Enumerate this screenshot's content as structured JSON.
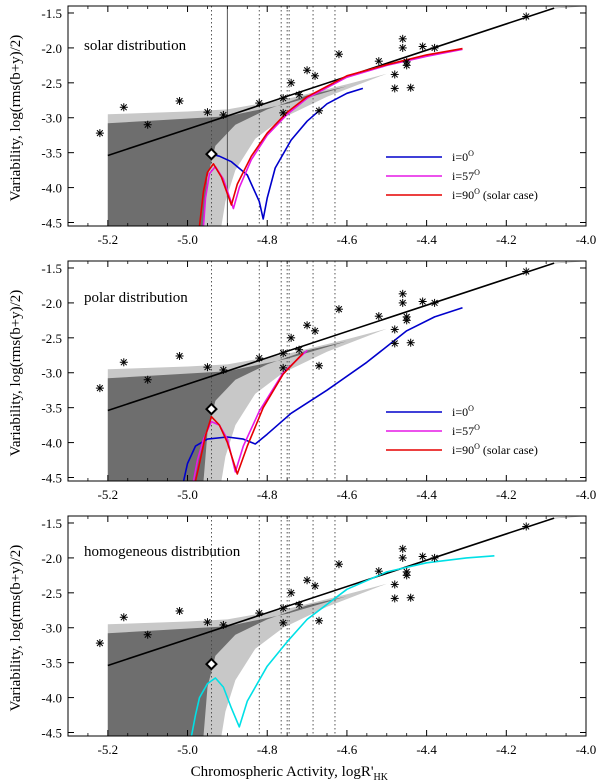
{
  "chart_data": {
    "type": "line",
    "xlabel": "Chromospheric Activity,  logR'",
    "xlabel_sub": "HK",
    "ylabel": "Variability, log(rms(b+y)/2)",
    "xlim": [
      -5.3,
      -4.0
    ],
    "ylim": [
      -4.55,
      -1.4
    ],
    "xticks": [
      -5.2,
      -5.0,
      -4.8,
      -4.6,
      -4.4,
      -4.2,
      -4.0
    ],
    "xtick_labels": [
      "-5.2",
      "-5.0",
      "-4.8",
      "-4.6",
      "-4.4",
      "-4.2",
      "-4.0"
    ],
    "yticks": [
      -1.5,
      -2.0,
      -2.5,
      -3.0,
      -3.5,
      -4.0,
      -4.5
    ],
    "ytick_labels": [
      "-1.5",
      "-2.0",
      "-2.5",
      "-3.0",
      "-3.5",
      "-4.0",
      "-4.5"
    ],
    "colors": {
      "dark_band": "#6e6e6e",
      "light_band": "#c8c8c8",
      "fit_line": "#000000",
      "guide_line": "#bbbbbb",
      "i0": "#0000cc",
      "i57": "#e619e6",
      "i90": "#e60000",
      "homogeneous": "#00e0e6"
    },
    "stars": [
      {
        "x": -5.22,
        "y": -3.22
      },
      {
        "x": -5.16,
        "y": -2.85
      },
      {
        "x": -5.1,
        "y": -3.1
      },
      {
        "x": -5.02,
        "y": -2.76
      },
      {
        "x": -4.95,
        "y": -2.92
      },
      {
        "x": -4.91,
        "y": -2.96
      },
      {
        "x": -4.82,
        "y": -2.79
      },
      {
        "x": -4.76,
        "y": -2.72
      },
      {
        "x": -4.76,
        "y": -2.93
      },
      {
        "x": -4.74,
        "y": -2.5
      },
      {
        "x": -4.72,
        "y": -2.67
      },
      {
        "x": -4.7,
        "y": -2.32
      },
      {
        "x": -4.68,
        "y": -2.4
      },
      {
        "x": -4.67,
        "y": -2.9
      },
      {
        "x": -4.62,
        "y": -2.09
      },
      {
        "x": -4.52,
        "y": -2.19
      },
      {
        "x": -4.48,
        "y": -2.38
      },
      {
        "x": -4.48,
        "y": -2.58
      },
      {
        "x": -4.46,
        "y": -2.0
      },
      {
        "x": -4.46,
        "y": -1.87
      },
      {
        "x": -4.45,
        "y": -2.25
      },
      {
        "x": -4.45,
        "y": -2.2
      },
      {
        "x": -4.44,
        "y": -2.57
      },
      {
        "x": -4.41,
        "y": -1.98
      },
      {
        "x": -4.38,
        "y": -2.0
      },
      {
        "x": -4.15,
        "y": -1.55
      }
    ],
    "sun": {
      "x": -4.94,
      "y": -3.52
    },
    "fit_line": [
      {
        "x": -5.2,
        "y": -3.54
      },
      {
        "x": -4.08,
        "y": -1.43
      }
    ],
    "vertical_lines": [
      -4.94,
      -4.82,
      -4.765,
      -4.75,
      -4.745,
      -4.685,
      -4.63
    ],
    "bands": {
      "x_start": -5.2,
      "dark": {
        "upper": [
          [
            -5.2,
            -3.08
          ],
          [
            -4.9,
            -2.98
          ],
          [
            -4.75,
            -2.8
          ],
          [
            -4.6,
            -2.55
          ],
          [
            -4.5,
            -2.37
          ]
        ],
        "edge": [
          [
            -4.96,
            -4.55
          ],
          [
            -4.95,
            -3.85
          ],
          [
            -4.93,
            -3.4
          ],
          [
            -4.88,
            -3.1
          ],
          [
            -4.8,
            -2.88
          ],
          [
            -4.7,
            -2.68
          ],
          [
            -4.6,
            -2.55
          ],
          [
            -4.5,
            -2.37
          ]
        ]
      },
      "light": {
        "upper": [
          [
            -5.2,
            -2.95
          ],
          [
            -5.0,
            -2.91
          ],
          [
            -4.9,
            -2.88
          ],
          [
            -4.75,
            -2.73
          ],
          [
            -4.6,
            -2.52
          ],
          [
            -4.5,
            -2.37
          ]
        ],
        "edge": [
          [
            -4.915,
            -4.55
          ],
          [
            -4.905,
            -4.2
          ],
          [
            -4.88,
            -3.75
          ],
          [
            -4.83,
            -3.3
          ],
          [
            -4.76,
            -3.0
          ],
          [
            -4.65,
            -2.7
          ],
          [
            -4.5,
            -2.37
          ]
        ]
      }
    },
    "panels": [
      {
        "title": "solar distribution",
        "solid_vertical_line": -4.9,
        "legend": [
          "i=0",
          "i=57",
          "i=90"
        ],
        "legend_suffix": [
          "",
          "",
          " (solar case)"
        ],
        "legend_sup": "O",
        "series": [
          {
            "name": "i=0",
            "color_key": "i0",
            "points": [
              [
                -4.94,
                -3.52
              ],
              [
                -4.92,
                -3.55
              ],
              [
                -4.89,
                -3.63
              ],
              [
                -4.85,
                -3.82
              ],
              [
                -4.82,
                -4.2
              ],
              [
                -4.81,
                -4.45
              ],
              [
                -4.8,
                -4.15
              ],
              [
                -4.78,
                -3.72
              ],
              [
                -4.74,
                -3.32
              ],
              [
                -4.7,
                -3.05
              ],
              [
                -4.65,
                -2.8
              ],
              [
                -4.6,
                -2.65
              ],
              [
                -4.56,
                -2.58
              ]
            ]
          },
          {
            "name": "i=57",
            "color_key": "i57",
            "points": [
              [
                -4.96,
                -4.55
              ],
              [
                -4.955,
                -4.15
              ],
              [
                -4.945,
                -3.8
              ],
              [
                -4.93,
                -3.7
              ],
              [
                -4.91,
                -3.88
              ],
              [
                -4.885,
                -4.3
              ],
              [
                -4.87,
                -4.0
              ],
              [
                -4.84,
                -3.6
              ],
              [
                -4.8,
                -3.25
              ],
              [
                -4.75,
                -2.95
              ],
              [
                -4.7,
                -2.72
              ],
              [
                -4.6,
                -2.42
              ],
              [
                -4.5,
                -2.25
              ],
              [
                -4.4,
                -2.12
              ],
              [
                -4.31,
                -2.02
              ]
            ]
          },
          {
            "name": "i=90",
            "color_key": "i90",
            "points": [
              [
                -4.97,
                -4.55
              ],
              [
                -4.96,
                -4.05
              ],
              [
                -4.95,
                -3.78
              ],
              [
                -4.935,
                -3.66
              ],
              [
                -4.915,
                -3.85
              ],
              [
                -4.89,
                -4.25
              ],
              [
                -4.875,
                -3.95
              ],
              [
                -4.84,
                -3.55
              ],
              [
                -4.8,
                -3.22
              ],
              [
                -4.75,
                -2.92
              ],
              [
                -4.7,
                -2.7
              ],
              [
                -4.6,
                -2.4
              ],
              [
                -4.5,
                -2.24
              ],
              [
                -4.4,
                -2.1
              ],
              [
                -4.31,
                -2.01
              ]
            ]
          }
        ]
      },
      {
        "title": "polar distribution",
        "solid_vertical_line": null,
        "legend": [
          "i=0",
          "i=57",
          "i=90"
        ],
        "legend_suffix": [
          "",
          "",
          " (solar case)"
        ],
        "legend_sup": "O",
        "series": [
          {
            "name": "i=0",
            "color_key": "i0",
            "points": [
              [
                -5.01,
                -4.55
              ],
              [
                -5.0,
                -4.3
              ],
              [
                -4.98,
                -4.05
              ],
              [
                -4.95,
                -3.95
              ],
              [
                -4.9,
                -3.92
              ],
              [
                -4.86,
                -3.95
              ],
              [
                -4.83,
                -4.02
              ],
              [
                -4.8,
                -3.88
              ],
              [
                -4.74,
                -3.58
              ],
              [
                -4.65,
                -3.25
              ],
              [
                -4.55,
                -2.85
              ],
              [
                -4.45,
                -2.4
              ],
              [
                -4.38,
                -2.2
              ],
              [
                -4.31,
                -2.07
              ]
            ]
          },
          {
            "name": "i=57",
            "color_key": "i57",
            "points": [
              [
                -4.985,
                -4.55
              ],
              [
                -4.975,
                -4.25
              ],
              [
                -4.96,
                -3.95
              ],
              [
                -4.94,
                -3.7
              ],
              [
                -4.92,
                -3.75
              ],
              [
                -4.9,
                -3.95
              ],
              [
                -4.88,
                -4.42
              ],
              [
                -4.86,
                -4.05
              ],
              [
                -4.82,
                -3.55
              ],
              [
                -4.76,
                -3.0
              ],
              [
                -4.7,
                -2.68
              ]
            ]
          },
          {
            "name": "i=90",
            "color_key": "i90",
            "points": [
              [
                -4.98,
                -4.55
              ],
              [
                -4.97,
                -4.3
              ],
              [
                -4.955,
                -3.9
              ],
              [
                -4.94,
                -3.63
              ],
              [
                -4.92,
                -3.75
              ],
              [
                -4.9,
                -4.0
              ],
              [
                -4.875,
                -4.45
              ],
              [
                -4.85,
                -4.05
              ],
              [
                -4.81,
                -3.5
              ],
              [
                -4.76,
                -3.02
              ],
              [
                -4.71,
                -2.72
              ]
            ]
          }
        ]
      },
      {
        "title": "homogeneous distribution",
        "solid_vertical_line": null,
        "legend": [],
        "legend_suffix": [],
        "legend_sup": "O",
        "series": [
          {
            "name": "homogeneous",
            "color_key": "homogeneous",
            "points": [
              [
                -4.99,
                -4.55
              ],
              [
                -4.98,
                -4.25
              ],
              [
                -4.97,
                -4.0
              ],
              [
                -4.95,
                -3.8
              ],
              [
                -4.93,
                -3.72
              ],
              [
                -4.91,
                -3.85
              ],
              [
                -4.89,
                -4.15
              ],
              [
                -4.87,
                -4.42
              ],
              [
                -4.85,
                -4.05
              ],
              [
                -4.8,
                -3.55
              ],
              [
                -4.75,
                -3.2
              ],
              [
                -4.7,
                -2.88
              ],
              [
                -4.6,
                -2.45
              ],
              [
                -4.5,
                -2.2
              ],
              [
                -4.4,
                -2.07
              ],
              [
                -4.3,
                -2.0
              ],
              [
                -4.23,
                -1.97
              ]
            ]
          }
        ]
      }
    ]
  }
}
